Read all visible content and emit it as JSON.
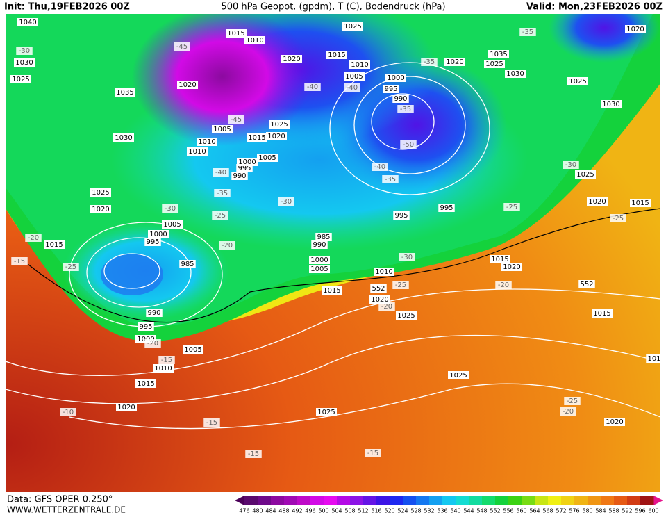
{
  "header": {
    "init": "Init: Thu,19FEB2026 00Z",
    "title": "500 hPa Geopot. (gpdm), T (C), Bodendruck (hPa)",
    "valid": "Valid: Mon,23FEB2026 00Z"
  },
  "footer": {
    "data": "Data: GFS OPER 0.250°",
    "site": "WWW.WETTERZENTRALE.DE"
  },
  "colorbar": {
    "labels": [
      476,
      480,
      484,
      488,
      492,
      496,
      500,
      504,
      508,
      512,
      516,
      520,
      524,
      528,
      532,
      536,
      540,
      544,
      548,
      552,
      556,
      560,
      564,
      568,
      572,
      576,
      580,
      584,
      588,
      592,
      596,
      600
    ],
    "colors": [
      "#4b0059",
      "#5a0a6e",
      "#6e0a8a",
      "#8c0aa0",
      "#a00ab4",
      "#be0ac8",
      "#d20ae6",
      "#e60af0",
      "#b40ae6",
      "#8c14e6",
      "#6414e6",
      "#3c14e6",
      "#1e28f0",
      "#1450f0",
      "#1478f0",
      "#14a0f0",
      "#14c8f0",
      "#14dcd2",
      "#14dca0",
      "#14dc6e",
      "#14d23c",
      "#3cd214",
      "#78dc14",
      "#c8e614",
      "#f0f014",
      "#f0d214",
      "#f0b414",
      "#f09614",
      "#f07814",
      "#e65a14",
      "#d23c14",
      "#a01414",
      "#e6148c"
    ]
  },
  "map_labels": [
    1040,
    -30,
    1030,
    1025,
    1035,
    1030,
    1025,
    1020,
    1005,
    1000,
    995,
    1015,
    -20,
    -15,
    -25,
    985,
    990,
    995,
    1000,
    -20,
    1005,
    1010,
    -15,
    1015,
    1020,
    -10,
    -15,
    -15,
    -15,
    1025,
    1025,
    1025,
    1020,
    -20,
    1015,
    552,
    -25,
    1010,
    -30,
    1005,
    1000,
    990,
    985,
    -30,
    995,
    995,
    -25,
    -35,
    -40,
    990,
    995,
    1000,
    1005,
    -40,
    -35,
    -25,
    -30,
    -20,
    1010,
    1010,
    1005,
    -45,
    1020,
    1025,
    1015,
    1020,
    -45,
    1015,
    1010,
    1020,
    1025,
    1015,
    1010,
    1005,
    -40,
    -40,
    1000,
    995,
    990,
    -35,
    -50,
    -35,
    1020,
    -35,
    1035,
    1025,
    1030,
    1020,
    1025,
    1030,
    -30,
    1025,
    1020,
    1015,
    -25,
    -20,
    1015,
    1020,
    552,
    1015,
    101,
    -25,
    -20,
    1020
  ]
}
